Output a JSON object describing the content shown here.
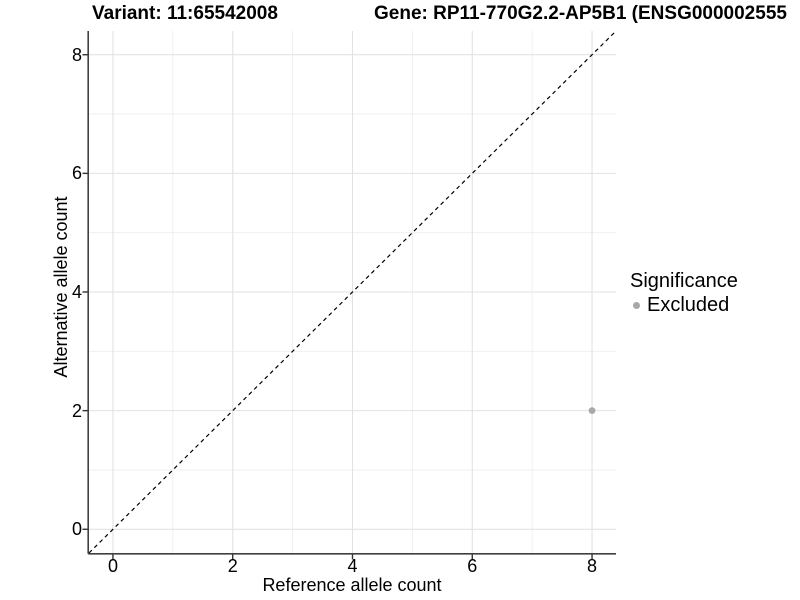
{
  "titles": {
    "variant": "Variant: 11:65542008",
    "gene": "Gene: RP11-770G2.2-AP5B1 (ENSG000002555"
  },
  "legend": {
    "title": "Significance",
    "items": [
      {
        "label": "Excluded",
        "color": "#a8a8a8"
      }
    ]
  },
  "chart_data": {
    "type": "scatter",
    "x": {
      "label": "Reference allele count",
      "ticks": [
        0,
        2,
        4,
        6,
        8
      ],
      "minor_ticks": [
        1,
        3,
        5,
        7
      ],
      "lim": [
        -0.4,
        8.4
      ]
    },
    "y": {
      "label": "Alternative allele count",
      "ticks": [
        0,
        2,
        4,
        6,
        8
      ],
      "minor_ticks": [
        1,
        3,
        5,
        7
      ],
      "lim": [
        -0.4,
        8.4
      ]
    },
    "series": [
      {
        "name": "Excluded",
        "color": "#a8a8a8",
        "points": [
          {
            "x": 8,
            "y": 2
          }
        ]
      }
    ],
    "reference_line": {
      "type": "identity",
      "style": "dashed",
      "color": "#000000"
    },
    "grid": {
      "major_color": "#e2e2e2",
      "minor_color": "#eeeeee"
    },
    "axis_color": "#404040",
    "tick_color": "#333333",
    "legend_position": "right"
  }
}
